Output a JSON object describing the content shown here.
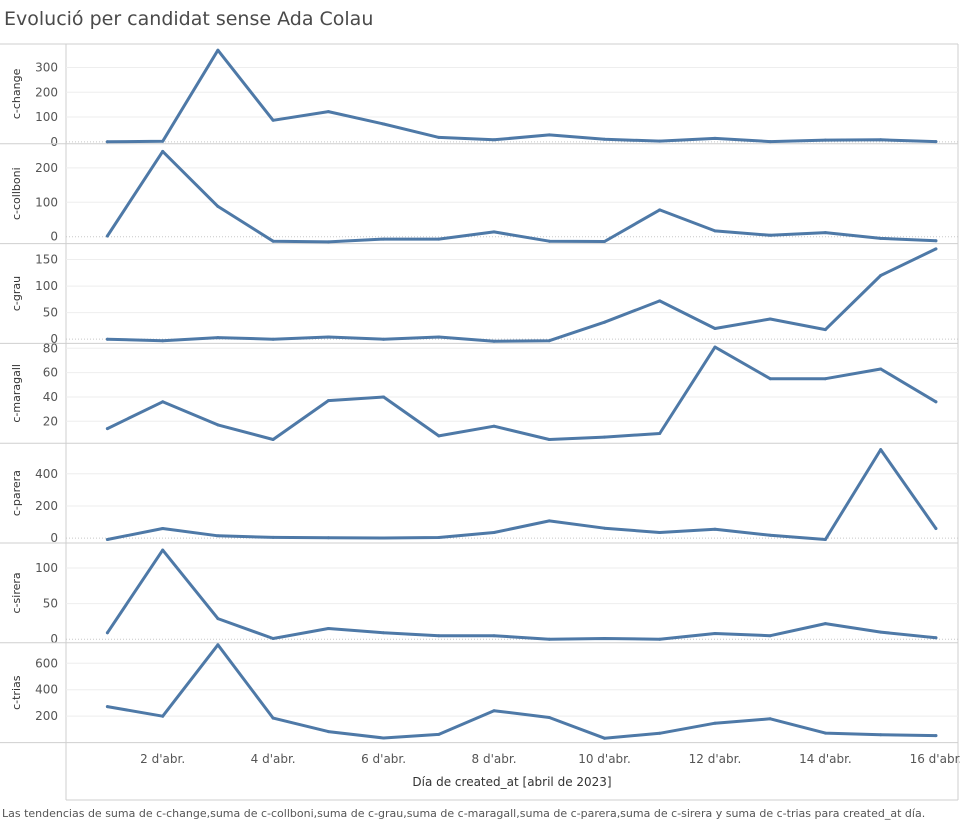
{
  "title": "Evolució per candidat sense Ada Colau",
  "caption": "Las tendencias de suma de c-change,suma de c-collboni,suma de c-grau,suma de c-maragall,suma de c-parera,suma de c-sirera y suma de c-trias para created_at día.",
  "chart_data": {
    "type": "line",
    "title": "Evolució per candidat sense Ada Colau",
    "xlabel": "Día de created_at [abril de 2023]",
    "x": [
      1,
      2,
      3,
      4,
      5,
      6,
      7,
      8,
      9,
      10,
      11,
      12,
      13,
      14,
      15,
      16
    ],
    "x_ticks": [
      {
        "x": 2,
        "label": "2 d'abr."
      },
      {
        "x": 4,
        "label": "4 d'abr."
      },
      {
        "x": 6,
        "label": "6 d'abr."
      },
      {
        "x": 8,
        "label": "8 d'abr."
      },
      {
        "x": 10,
        "label": "10 d'abr."
      },
      {
        "x": 12,
        "label": "12 d'abr."
      },
      {
        "x": 14,
        "label": "14 d'abr."
      },
      {
        "x": 16,
        "label": "16 d'abr."
      }
    ],
    "line_color": "#4e79a7",
    "grid": true,
    "series": [
      {
        "name": "c-change",
        "values": [
          0,
          2,
          370,
          87,
          122,
          72,
          18,
          8,
          28,
          10,
          3,
          14,
          1,
          7,
          8,
          1
        ],
        "ylim": [
          -8,
          395
        ],
        "yticks": [
          0,
          100,
          200,
          300
        ]
      },
      {
        "name": "c-collboni",
        "values": [
          2,
          248,
          88,
          -13,
          -15,
          -7,
          -7,
          14,
          -13,
          -14,
          78,
          17,
          4,
          12,
          -5,
          -12
        ],
        "ylim": [
          -20,
          270
        ],
        "yticks": [
          0,
          100,
          200
        ]
      },
      {
        "name": "c-grau",
        "values": [
          0,
          -3,
          3,
          0,
          4,
          0,
          4,
          -4,
          -3,
          32,
          72,
          20,
          38,
          18,
          120,
          170
        ],
        "ylim": [
          -8,
          180
        ],
        "yticks": [
          0,
          50,
          100,
          150
        ]
      },
      {
        "name": "c-maragall",
        "values": [
          14,
          36,
          17,
          5,
          37,
          40,
          8,
          16,
          5,
          7,
          10,
          81,
          55,
          55,
          63,
          36
        ],
        "ylim": [
          2,
          84
        ],
        "yticks": [
          20,
          40,
          60,
          80
        ]
      },
      {
        "name": "c-parera",
        "values": [
          -8,
          60,
          15,
          5,
          2,
          1,
          4,
          35,
          107,
          62,
          35,
          55,
          18,
          -8,
          550,
          60
        ],
        "ylim": [
          -30,
          590
        ],
        "yticks": [
          0,
          200,
          400
        ]
      },
      {
        "name": "c-sirera",
        "values": [
          9,
          125,
          29,
          1,
          15,
          9,
          5,
          5,
          0,
          1,
          0,
          8,
          5,
          22,
          10,
          2
        ],
        "ylim": [
          -5,
          135
        ],
        "yticks": [
          0,
          50,
          100
        ]
      },
      {
        "name": "c-trias",
        "values": [
          272,
          200,
          740,
          185,
          83,
          35,
          62,
          241,
          190,
          33,
          70,
          147,
          180,
          72,
          60,
          53
        ],
        "ylim": [
          0,
          755
        ],
        "yticks": [
          200,
          400,
          600
        ]
      }
    ]
  }
}
